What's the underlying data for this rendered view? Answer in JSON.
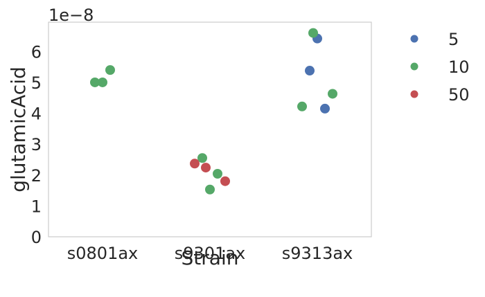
{
  "chart_data": {
    "type": "scatter",
    "title": "",
    "xlabel": "Strain",
    "ylabel": "glutamicAcid",
    "y_offset_label": "1e−8",
    "categories": [
      "s0801ax",
      "s9301ax",
      "s9313ax"
    ],
    "ylim": [
      0,
      6.95
    ],
    "yticks": [
      "0",
      "1",
      "2",
      "3",
      "4",
      "5",
      "6"
    ],
    "grid": false,
    "legend_position": "right, outside plot",
    "series": [
      {
        "name": "5",
        "color": "#4c72b0",
        "points": [
          {
            "category": "s9313ax",
            "y": 5.38
          },
          {
            "category": "s9313ax",
            "y": 6.42
          },
          {
            "category": "s9313ax",
            "y": 4.15
          }
        ]
      },
      {
        "name": "10",
        "color": "#55a868",
        "points": [
          {
            "category": "s0801ax",
            "y": 5.0
          },
          {
            "category": "s0801ax",
            "y": 5.0
          },
          {
            "category": "s0801ax",
            "y": 5.4
          },
          {
            "category": "s9301ax",
            "y": 2.55
          },
          {
            "category": "s9301ax",
            "y": 1.53
          },
          {
            "category": "s9301ax",
            "y": 2.04
          },
          {
            "category": "s9313ax",
            "y": 4.22
          },
          {
            "category": "s9313ax",
            "y": 4.63
          },
          {
            "category": "s9313ax",
            "y": 6.6
          }
        ]
      },
      {
        "name": "50",
        "color": "#c44e52",
        "points": [
          {
            "category": "s9301ax",
            "y": 2.37
          },
          {
            "category": "s9301ax",
            "y": 1.8
          },
          {
            "category": "s9301ax",
            "y": 2.24
          }
        ]
      }
    ]
  }
}
